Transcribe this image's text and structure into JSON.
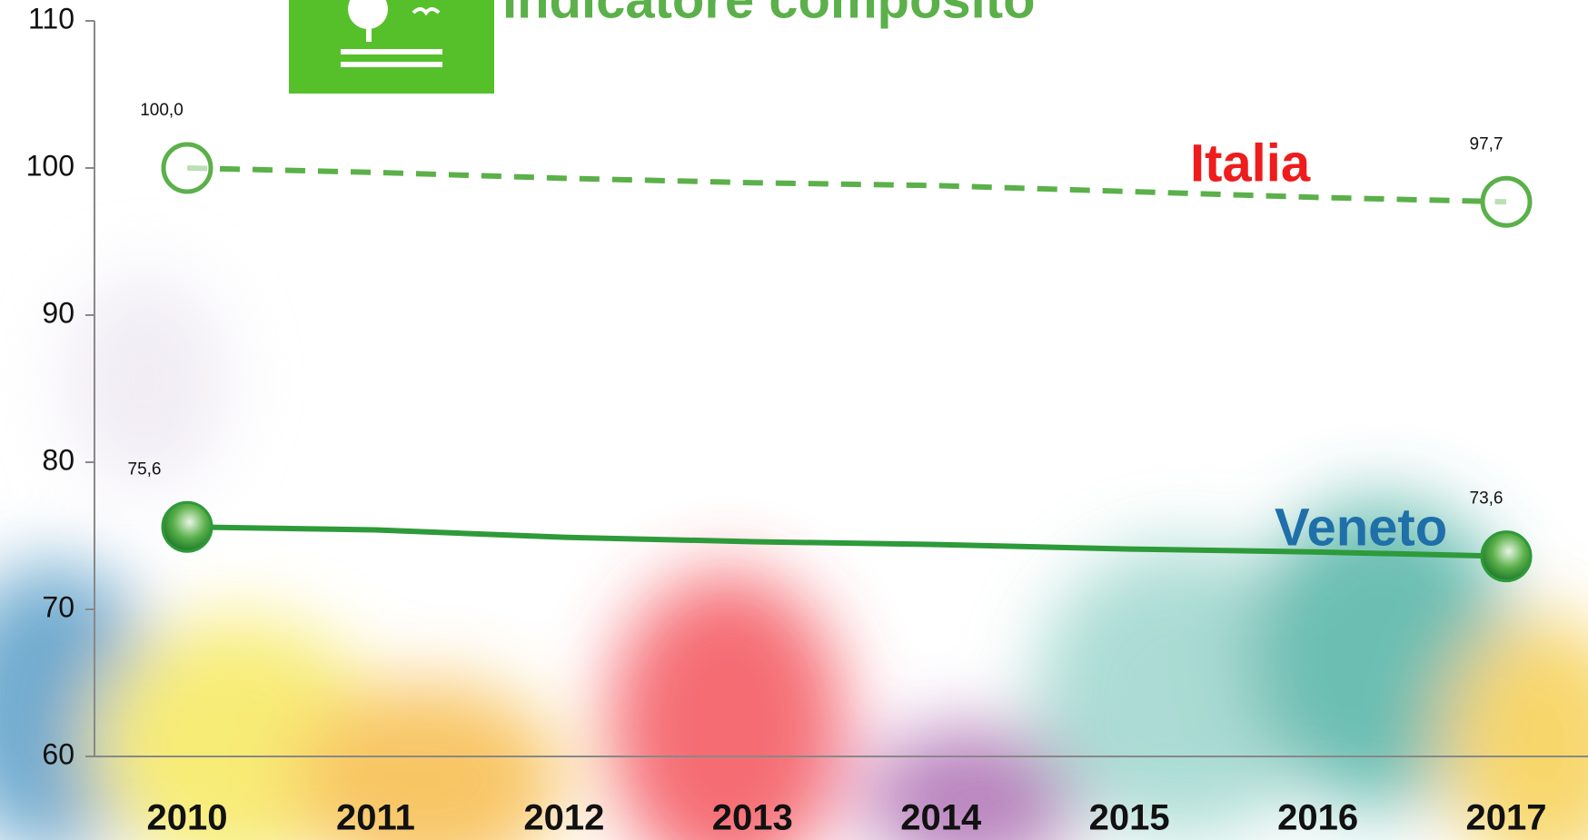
{
  "chart_data": {
    "type": "line",
    "title": "Indicatore composito",
    "categories": [
      "2010",
      "2011",
      "2012",
      "2013",
      "2014",
      "2015",
      "2016",
      "2017"
    ],
    "series": [
      {
        "name": "Italia",
        "color": "#5bb04a",
        "label_color": "#ee1c1c",
        "dashed": true,
        "values": [
          100.0,
          99.7,
          99.3,
          99.0,
          98.8,
          98.4,
          98.0,
          97.7
        ],
        "value_labels": [
          "100,0",
          null,
          null,
          null,
          null,
          null,
          null,
          "97,7"
        ]
      },
      {
        "name": "Veneto",
        "color": "#2e9a3a",
        "label_color": "#1f6fa8",
        "dashed": false,
        "values": [
          75.6,
          75.4,
          74.9,
          74.6,
          74.4,
          74.1,
          73.9,
          73.6
        ],
        "value_labels": [
          "75,6",
          null,
          null,
          null,
          null,
          null,
          null,
          "73,6"
        ]
      }
    ],
    "ylim": [
      60,
      110
    ],
    "yticks": [
      60,
      70,
      80,
      90,
      100,
      110
    ]
  }
}
